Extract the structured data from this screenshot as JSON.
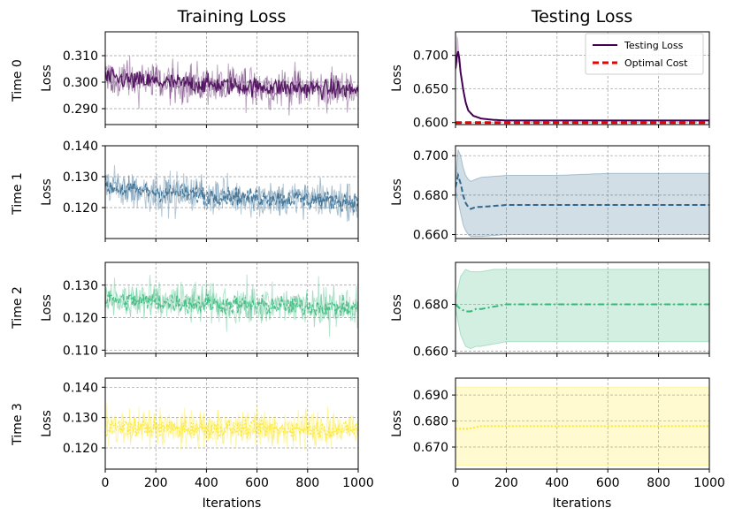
{
  "column_titles": [
    "Training Loss",
    "Testing Loss"
  ],
  "row_labels": [
    "Time 0",
    "Time 1",
    "Time 2",
    "Time 3"
  ],
  "ylabel": "Loss",
  "xlabel": "Iterations",
  "legend": {
    "entries": [
      "Testing Loss",
      "Optimal Cost"
    ],
    "placement": "top-right",
    "colors": [
      "#440154",
      "#ee0000"
    ]
  },
  "colors": {
    "time0": "#440154",
    "time1": "#31688e",
    "time2": "#35b779",
    "time3": "#fde725",
    "grid": "#9a9a9a"
  },
  "chart_data": [
    {
      "type": "line",
      "panel": "Training Loss / Time 0",
      "x_range": [
        0,
        1000
      ],
      "xlim": [
        0,
        1000
      ],
      "ylim": [
        0.284,
        0.319
      ],
      "xticks": [
        0,
        200,
        400,
        600,
        800,
        1000
      ],
      "yticks": [
        0.29,
        0.3,
        0.31
      ],
      "ytick_labels": [
        "0.290",
        "0.300",
        "0.310"
      ],
      "series": [
        {
          "mean_start": 0.302,
          "mean_end": 0.297,
          "band_spread": 0.006,
          "style": "solid"
        }
      ],
      "grid": true
    },
    {
      "type": "line",
      "panel": "Testing Loss / Time 0",
      "x_range": [
        0,
        1000
      ],
      "xlim": [
        0,
        1000
      ],
      "ylim": [
        0.597,
        0.735
      ],
      "xticks": [
        0,
        200,
        400,
        600,
        800,
        1000
      ],
      "yticks": [
        0.6,
        0.65,
        0.7
      ],
      "ytick_labels": [
        "0.600",
        "0.650",
        "0.700"
      ],
      "series": [
        {
          "name": "Testing Loss",
          "x": [
            0,
            5,
            10,
            15,
            20,
            30,
            40,
            50,
            70,
            100,
            150,
            200,
            300,
            500,
            1000
          ],
          "y": [
            0.68,
            0.698,
            0.706,
            0.695,
            0.675,
            0.65,
            0.63,
            0.618,
            0.61,
            0.606,
            0.604,
            0.603,
            0.603,
            0.603,
            0.603
          ],
          "style": "solid"
        },
        {
          "name": "Optimal Cost",
          "x": [
            0,
            1000
          ],
          "y": [
            0.6,
            0.6
          ],
          "style": "dashed"
        }
      ],
      "grid": true
    },
    {
      "type": "line",
      "panel": "Training Loss / Time 1",
      "x_range": [
        0,
        1000
      ],
      "xlim": [
        0,
        1000
      ],
      "ylim": [
        0.11,
        0.14
      ],
      "xticks": [
        0,
        200,
        400,
        600,
        800,
        1000
      ],
      "yticks": [
        0.12,
        0.13,
        0.14
      ],
      "ytick_labels": [
        "0.120",
        "0.130",
        "0.140"
      ],
      "series": [
        {
          "mean_start": 0.127,
          "mean_end": 0.122,
          "band_spread": 0.005,
          "style": "dashed"
        }
      ],
      "grid": true
    },
    {
      "type": "line",
      "panel": "Testing Loss / Time 1",
      "x_range": [
        0,
        1000
      ],
      "xlim": [
        0,
        1000
      ],
      "ylim": [
        0.658,
        0.705
      ],
      "xticks": [
        0,
        200,
        400,
        600,
        800,
        1000
      ],
      "yticks": [
        0.66,
        0.68,
        0.7
      ],
      "ytick_labels": [
        "0.660",
        "0.680",
        "0.700"
      ],
      "series": [
        {
          "x": [
            0,
            10,
            20,
            30,
            40,
            50,
            60,
            80,
            100,
            200,
            400,
            600,
            800,
            1000
          ],
          "y": [
            0.684,
            0.69,
            0.686,
            0.68,
            0.676,
            0.674,
            0.673,
            0.674,
            0.674,
            0.675,
            0.675,
            0.675,
            0.675,
            0.675
          ],
          "upper": [
            0.686,
            0.703,
            0.7,
            0.694,
            0.69,
            0.688,
            0.687,
            0.688,
            0.689,
            0.69,
            0.69,
            0.691,
            0.691,
            0.691
          ],
          "lower": [
            0.682,
            0.677,
            0.671,
            0.665,
            0.662,
            0.66,
            0.659,
            0.659,
            0.659,
            0.66,
            0.66,
            0.66,
            0.66,
            0.66
          ],
          "style": "dashed"
        }
      ],
      "grid": true
    },
    {
      "type": "line",
      "panel": "Training Loss / Time 2",
      "x_range": [
        0,
        1000
      ],
      "xlim": [
        0,
        1000
      ],
      "ylim": [
        0.109,
        0.137
      ],
      "xticks": [
        0,
        200,
        400,
        600,
        800,
        1000
      ],
      "yticks": [
        0.11,
        0.12,
        0.13
      ],
      "ytick_labels": [
        "0.110",
        "0.120",
        "0.130"
      ],
      "series": [
        {
          "mean_start": 0.126,
          "mean_end": 0.123,
          "band_spread": 0.005,
          "style": "dashdot"
        }
      ],
      "grid": true
    },
    {
      "type": "line",
      "panel": "Testing Loss / Time 2",
      "x_range": [
        0,
        1000
      ],
      "xlim": [
        0,
        1000
      ],
      "ylim": [
        0.659,
        0.698
      ],
      "xticks": [
        0,
        200,
        400,
        600,
        800,
        1000
      ],
      "yticks": [
        0.66,
        0.68
      ],
      "ytick_labels": [
        "0.660",
        "0.680"
      ],
      "series": [
        {
          "x": [
            0,
            20,
            40,
            60,
            80,
            100,
            150,
            200,
            400,
            600,
            800,
            1000
          ],
          "y": [
            0.68,
            0.678,
            0.677,
            0.677,
            0.678,
            0.678,
            0.679,
            0.68,
            0.68,
            0.68,
            0.68,
            0.68
          ],
          "upper": [
            0.682,
            0.692,
            0.695,
            0.694,
            0.694,
            0.694,
            0.695,
            0.695,
            0.695,
            0.695,
            0.695,
            0.695
          ],
          "lower": [
            0.678,
            0.667,
            0.662,
            0.661,
            0.662,
            0.662,
            0.663,
            0.664,
            0.664,
            0.664,
            0.664,
            0.664
          ],
          "style": "dashdot"
        }
      ],
      "grid": true
    },
    {
      "type": "line",
      "panel": "Training Loss / Time 3",
      "x_range": [
        0,
        1000
      ],
      "xlim": [
        0,
        1000
      ],
      "ylim": [
        0.113,
        0.143
      ],
      "xticks": [
        0,
        200,
        400,
        600,
        800,
        1000
      ],
      "xtick_labels": [
        "0",
        "200",
        "400",
        "600",
        "800",
        "1000"
      ],
      "yticks": [
        0.12,
        0.13,
        0.14
      ],
      "ytick_labels": [
        "0.120",
        "0.130",
        "0.140"
      ],
      "series": [
        {
          "mean_start": 0.127,
          "mean_end": 0.126,
          "band_spread": 0.005,
          "style": "dotted"
        }
      ],
      "grid": true
    },
    {
      "type": "line",
      "panel": "Testing Loss / Time 3",
      "x_range": [
        0,
        1000
      ],
      "xlim": [
        0,
        1000
      ],
      "ylim": [
        0.6615,
        0.6965
      ],
      "xticks": [
        0,
        200,
        400,
        600,
        800,
        1000
      ],
      "xtick_labels": [
        "0",
        "200",
        "400",
        "600",
        "800",
        "1000"
      ],
      "yticks": [
        0.67,
        0.68,
        0.69
      ],
      "ytick_labels": [
        "0.670",
        "0.680",
        "0.690"
      ],
      "series": [
        {
          "x": [
            0,
            50,
            100,
            200,
            300,
            400,
            600,
            800,
            1000
          ],
          "y": [
            0.677,
            0.677,
            0.678,
            0.678,
            0.678,
            0.678,
            0.678,
            0.678,
            0.678
          ],
          "upper": [
            0.693,
            0.693,
            0.693,
            0.693,
            0.693,
            0.693,
            0.693,
            0.693,
            0.693
          ],
          "lower": [
            0.663,
            0.663,
            0.663,
            0.663,
            0.663,
            0.663,
            0.663,
            0.663,
            0.663
          ],
          "style": "dotted"
        }
      ],
      "grid": true
    }
  ]
}
